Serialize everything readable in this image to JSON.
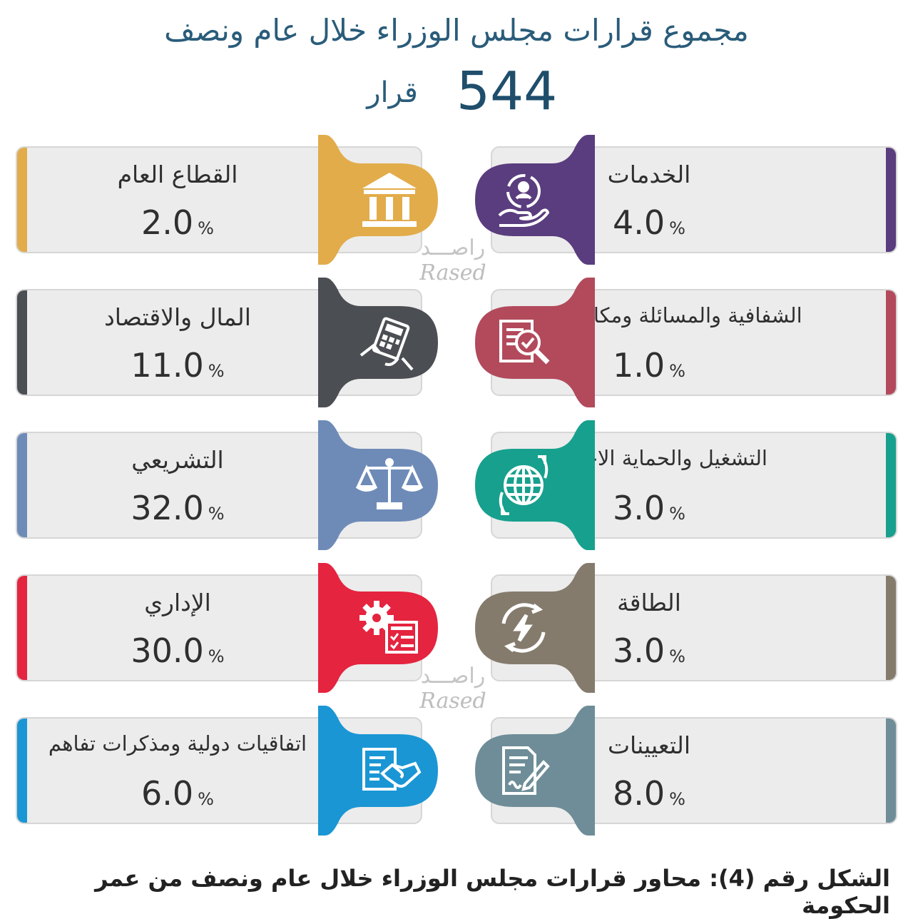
{
  "header": {
    "title": "مجموع قرارات مجلس الوزراء خلال عام ونصف",
    "total_value": "544",
    "total_unit": "قرار"
  },
  "chart_data": {
    "type": "table",
    "unit": "%",
    "items": [
      {
        "label": "الخدمات",
        "value": 4.0,
        "color": "#5a3d7e",
        "icon": "hand-user-service-icon"
      },
      {
        "label": "الشفافية والمسائلة ومكافحة الفساد",
        "value": 1.0,
        "color": "#b24a5c",
        "icon": "document-magnifier-icon"
      },
      {
        "label": "التشغيل والحماية الاجتماعية",
        "value": 3.0,
        "color": "#17a08e",
        "icon": "globe-arrows-icon"
      },
      {
        "label": "الطاقة",
        "value": 3.0,
        "color": "#857b6d",
        "icon": "energy-bolt-icon"
      },
      {
        "label": "التعيينات",
        "value": 8.0,
        "color": "#6e8d98",
        "icon": "document-pen-icon"
      },
      {
        "label": "القطاع العام",
        "value": 2.0,
        "color": "#e2ac4a",
        "icon": "government-building-icon"
      },
      {
        "label": "المال والاقتصاد",
        "value": 11.0,
        "color": "#4b4e52",
        "icon": "calculator-hand-icon"
      },
      {
        "label": "التشريعي",
        "value": 32.0,
        "color": "#6e8bb8",
        "icon": "justice-scale-icon"
      },
      {
        "label": "الإداري",
        "value": 30.0,
        "color": "#e5243f",
        "icon": "gear-checklist-icon"
      },
      {
        "label": "اتفاقيات دولية ومذكرات تفاهم",
        "value": 6.0,
        "color": "#1a96d4",
        "icon": "handshake-document-icon"
      }
    ]
  },
  "watermarks": [
    {
      "ar": "راصـــد",
      "en": "Rased"
    },
    {
      "ar": "راصـــد",
      "en": "Rased"
    }
  ],
  "caption": "الشكل رقم (4): محاور قرارات مجلس الوزراء خلال عام ونصف من عمر الحكومة"
}
